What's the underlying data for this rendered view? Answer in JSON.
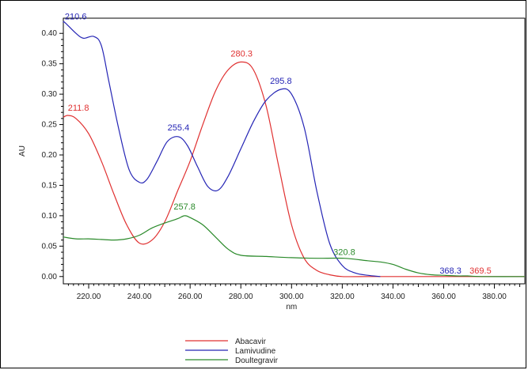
{
  "chart_data": {
    "type": "line",
    "xlabel": "nm",
    "ylabel": "AU",
    "xlim": [
      210,
      392
    ],
    "ylim": [
      -0.012,
      0.425
    ],
    "x_ticks": [
      220,
      240,
      260,
      280,
      300,
      320,
      340,
      360,
      380
    ],
    "x_tick_labels": [
      "220.00",
      "240.00",
      "260.00",
      "280.00",
      "300.00",
      "320.00",
      "340.00",
      "360.00",
      "380.00"
    ],
    "y_ticks": [
      0.0,
      0.05,
      0.1,
      0.15,
      0.2,
      0.25,
      0.3,
      0.35,
      0.4
    ],
    "y_tick_labels": [
      "0.00",
      "0.05",
      "0.10",
      "0.15",
      "0.20",
      "0.25",
      "0.30",
      "0.35",
      "0.40"
    ],
    "grid": false,
    "legend_position": "bottom",
    "series": [
      {
        "name": "Abacavir",
        "color": "#e03030",
        "x": [
          210,
          211.8,
          215,
          220,
          225,
          230,
          235,
          240,
          245,
          250,
          255,
          260,
          265,
          270,
          275,
          280.3,
          285,
          290,
          295,
          300,
          305,
          310,
          315,
          320,
          330,
          340,
          360,
          392
        ],
        "y": [
          0.262,
          0.265,
          0.26,
          0.235,
          0.19,
          0.135,
          0.085,
          0.055,
          0.06,
          0.09,
          0.14,
          0.19,
          0.25,
          0.305,
          0.34,
          0.353,
          0.34,
          0.28,
          0.18,
          0.085,
          0.03,
          0.01,
          0.003,
          0.0,
          0.0,
          0.0,
          0.0,
          0.0
        ]
      },
      {
        "name": "Lamivudine",
        "color": "#2525b5",
        "x": [
          210,
          210.6,
          215,
          218,
          222,
          225,
          228,
          232,
          236,
          240,
          243,
          247,
          251,
          255.4,
          259,
          263,
          267,
          271,
          275,
          280,
          285,
          290,
          295.8,
          300,
          305,
          310,
          315,
          320,
          325,
          330,
          335
        ],
        "y": [
          0.418,
          0.418,
          0.4,
          0.392,
          0.395,
          0.38,
          0.32,
          0.24,
          0.175,
          0.155,
          0.16,
          0.19,
          0.222,
          0.23,
          0.215,
          0.18,
          0.148,
          0.142,
          0.165,
          0.21,
          0.255,
          0.29,
          0.308,
          0.3,
          0.245,
          0.14,
          0.055,
          0.018,
          0.006,
          0.002,
          0.0
        ]
      },
      {
        "name": "Doultegravir",
        "color": "#2a8a2a",
        "x": [
          210,
          215,
          220,
          225,
          230,
          235,
          240,
          245,
          250,
          255,
          257.8,
          260,
          265,
          270,
          275,
          280,
          290,
          300,
          310,
          320.8,
          330,
          335,
          340,
          345,
          350,
          355,
          360,
          365,
          368.3,
          369.5,
          375,
          392
        ],
        "y": [
          0.065,
          0.062,
          0.062,
          0.061,
          0.06,
          0.062,
          0.068,
          0.08,
          0.088,
          0.095,
          0.1,
          0.097,
          0.085,
          0.065,
          0.045,
          0.035,
          0.033,
          0.031,
          0.03,
          0.03,
          0.026,
          0.024,
          0.02,
          0.012,
          0.006,
          0.003,
          0.002,
          0.001,
          0.001,
          0.001,
          0.0,
          0.0
        ]
      }
    ],
    "annotations": [
      {
        "text": "210.6",
        "x": 210.6,
        "y": 0.418,
        "color": "#2525b5"
      },
      {
        "text": "211.8",
        "x": 211.8,
        "y": 0.265,
        "color": "#e03030"
      },
      {
        "text": "280.3",
        "x": 280.3,
        "y": 0.353,
        "color": "#e03030"
      },
      {
        "text": "295.8",
        "x": 295.8,
        "y": 0.308,
        "color": "#2525b5"
      },
      {
        "text": "255.4",
        "x": 255.4,
        "y": 0.23,
        "color": "#2525b5"
      },
      {
        "text": "257.8",
        "x": 257.8,
        "y": 0.1,
        "color": "#2a8a2a"
      },
      {
        "text": "320.8",
        "x": 320.8,
        "y": 0.03,
        "color": "#2a8a2a"
      },
      {
        "text": "368.3",
        "x": 368.3,
        "y": 0.001,
        "color": "#2525b5"
      },
      {
        "text": "369.5",
        "x": 369.5,
        "y": 0.001,
        "color": "#e03030"
      }
    ]
  }
}
